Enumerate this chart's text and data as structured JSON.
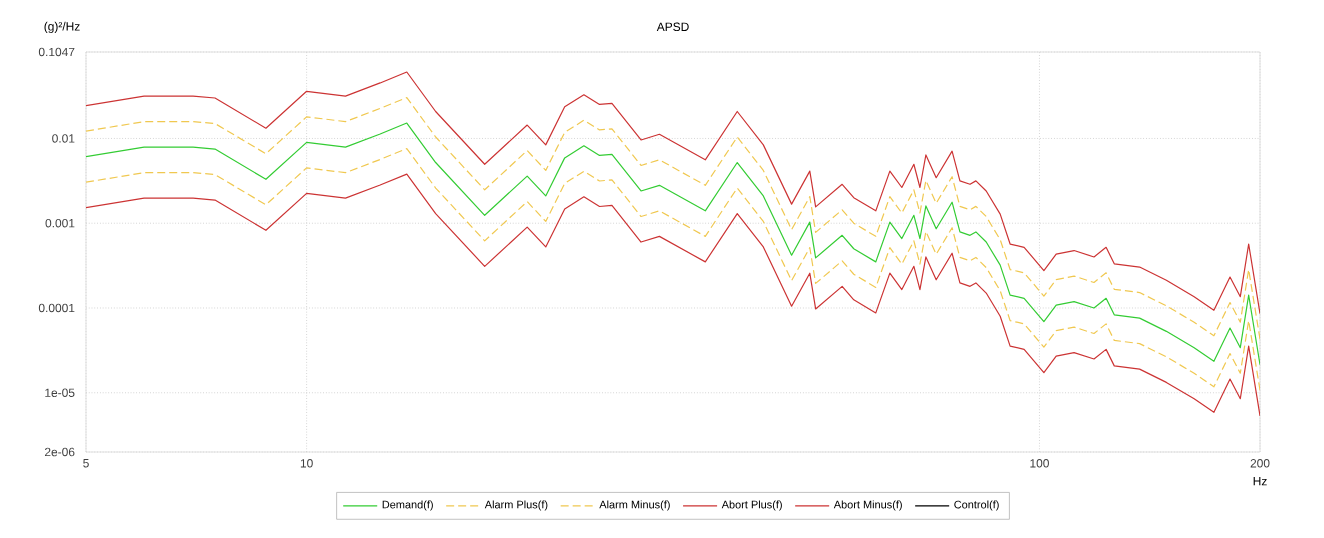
{
  "chart_data": {
    "type": "line",
    "title": "APSD",
    "xlabel": "Hz",
    "ylabel": "(g)²/Hz",
    "log": "xy",
    "grid": true,
    "legend": "bottom",
    "xlim": [
      5,
      200
    ],
    "xticks": [
      5,
      10,
      100,
      200
    ],
    "ylim": [
      2e-06,
      0.1047
    ],
    "yticks": [
      {
        "value": 0.1047,
        "label": "0.1047"
      },
      0.01,
      0.001,
      0.0001,
      {
        "value": 1e-05,
        "label": "1e-05"
      },
      {
        "value": 2e-06,
        "label": "2e-06"
      }
    ],
    "x": [
      5,
      6,
      7,
      7.5,
      8.8,
      10,
      11.3,
      12.6,
      13.7,
      15,
      17.5,
      20,
      21.2,
      22.5,
      23.9,
      25.1,
      26.1,
      28.6,
      30.3,
      35,
      38.7,
      42,
      45.9,
      48.6,
      49.5,
      53.8,
      55.8,
      59.8,
      62.5,
      64.9,
      67.4,
      68.7,
      70,
      72.3,
      76,
      77.9,
      80.4,
      81.9,
      84.6,
      88.4,
      91.2,
      95.3,
      101.4,
      105.4,
      111.5,
      118.7,
      123.3,
      126.5,
      137,
      149,
      162.6,
      173,
      182,
      188,
      193,
      200
    ],
    "series": [
      {
        "name": "Demand(f)",
        "color": "#33cc33",
        "line_style": "solid",
        "values": [
          0.0061,
          0.0079,
          0.0079,
          0.0075,
          0.0033,
          0.009,
          0.0079,
          0.0113,
          0.0152,
          0.0052,
          0.00124,
          0.0036,
          0.0021,
          0.0059,
          0.0082,
          0.0063,
          0.0065,
          0.0024,
          0.0028,
          0.0014,
          0.0052,
          0.0021,
          0.00042,
          0.00103,
          0.00039,
          0.00072,
          0.0005,
          0.00035,
          0.00103,
          0.00066,
          0.00124,
          0.00066,
          0.0016,
          0.00086,
          0.00177,
          0.00079,
          0.00072,
          0.00079,
          0.0006,
          0.00032,
          0.000142,
          0.00013,
          6.9e-05,
          0.000108,
          0.000119,
          0.0001,
          0.00013,
          8.3e-05,
          7.6e-05,
          5.3e-05,
          3.4e-05,
          2.35e-05,
          5.8e-05,
          3.4e-05,
          0.000142,
          2.14e-05
        ]
      },
      {
        "name": "Alarm Plus(f)",
        "color": "#f0c850",
        "line_style": "dashed",
        "values": [
          0.0122,
          0.0158,
          0.0158,
          0.015,
          0.0066,
          0.018,
          0.0158,
          0.0226,
          0.0304,
          0.0104,
          0.00248,
          0.0072,
          0.0042,
          0.0118,
          0.0164,
          0.0126,
          0.013,
          0.0048,
          0.0056,
          0.0028,
          0.0104,
          0.0042,
          0.00084,
          0.00206,
          0.00078,
          0.00144,
          0.001,
          0.0007,
          0.00206,
          0.00132,
          0.00248,
          0.00132,
          0.0032,
          0.00172,
          0.00354,
          0.00158,
          0.00144,
          0.00158,
          0.0012,
          0.00064,
          0.000284,
          0.00026,
          0.000138,
          0.000216,
          0.000238,
          0.0002,
          0.00026,
          0.000166,
          0.000152,
          0.000106,
          6.8e-05,
          4.7e-05,
          0.000116,
          6.8e-05,
          0.000284,
          4.28e-05
        ]
      },
      {
        "name": "Alarm Minus(f)",
        "color": "#f0c850",
        "line_style": "dashed",
        "values": [
          0.00305,
          0.00395,
          0.00395,
          0.00375,
          0.00165,
          0.0045,
          0.00395,
          0.00565,
          0.0076,
          0.0026,
          0.00062,
          0.0018,
          0.00105,
          0.00295,
          0.0041,
          0.00315,
          0.00325,
          0.0012,
          0.0014,
          0.0007,
          0.0026,
          0.00105,
          0.00021,
          0.000515,
          0.000195,
          0.00036,
          0.00025,
          0.000175,
          0.000515,
          0.00033,
          0.00062,
          0.00033,
          0.0008,
          0.00043,
          0.000885,
          0.000395,
          0.00036,
          0.000395,
          0.0003,
          0.00016,
          7.1e-05,
          6.5e-05,
          3.45e-05,
          5.4e-05,
          5.95e-05,
          5e-05,
          6.5e-05,
          4.15e-05,
          3.8e-05,
          2.65e-05,
          1.7e-05,
          1.175e-05,
          2.9e-05,
          1.7e-05,
          7.1e-05,
          1.07e-05
        ]
      },
      {
        "name": "Abort Plus(f)",
        "color": "#cc3333",
        "line_style": "solid",
        "values": [
          0.0244,
          0.0316,
          0.0316,
          0.03,
          0.0132,
          0.036,
          0.0316,
          0.0452,
          0.0608,
          0.0208,
          0.00496,
          0.0144,
          0.0084,
          0.0236,
          0.0328,
          0.0252,
          0.026,
          0.0096,
          0.0112,
          0.0056,
          0.0208,
          0.0084,
          0.00168,
          0.00412,
          0.00156,
          0.00288,
          0.002,
          0.0014,
          0.00412,
          0.00264,
          0.00496,
          0.00264,
          0.0064,
          0.00344,
          0.00708,
          0.00316,
          0.00288,
          0.00316,
          0.0024,
          0.00128,
          0.000568,
          0.00052,
          0.000276,
          0.000432,
          0.000476,
          0.0004,
          0.00052,
          0.000332,
          0.000304,
          0.000212,
          0.000136,
          9.4e-05,
          0.000232,
          0.000136,
          0.000568,
          8.56e-05
        ]
      },
      {
        "name": "Abort Minus(f)",
        "color": "#cc3333",
        "line_style": "solid",
        "values": [
          0.001525,
          0.001975,
          0.001975,
          0.001875,
          0.000825,
          0.00225,
          0.001975,
          0.002825,
          0.0038,
          0.0013,
          0.00031,
          0.0009,
          0.000525,
          0.001475,
          0.00205,
          0.001575,
          0.001625,
          0.0006,
          0.0007,
          0.00035,
          0.0013,
          0.000525,
          0.000105,
          0.0002575,
          9.75e-05,
          0.00018,
          0.000125,
          8.75e-05,
          0.0002575,
          0.000165,
          0.00031,
          0.000165,
          0.0004,
          0.000215,
          0.0004425,
          0.0001975,
          0.00018,
          0.0001975,
          0.00015,
          8e-05,
          3.55e-05,
          3.25e-05,
          1.725e-05,
          2.7e-05,
          2.975e-05,
          2.5e-05,
          3.25e-05,
          2.075e-05,
          1.9e-05,
          1.325e-05,
          8.5e-06,
          5.875e-06,
          1.45e-05,
          8.5e-06,
          3.55e-05,
          5.35e-06
        ]
      },
      {
        "name": "Control(f)",
        "color": "#000000",
        "line_style": "solid",
        "values": [
          null,
          null,
          null,
          null,
          null,
          null,
          null,
          null,
          null,
          null,
          null,
          null,
          null,
          null,
          null,
          null,
          null,
          null,
          null,
          null,
          null,
          null,
          null,
          null,
          null,
          null,
          null,
          null,
          null,
          null,
          null,
          null,
          null,
          null,
          null,
          null,
          null,
          null,
          null,
          null,
          null,
          null,
          null,
          null,
          null,
          null,
          null,
          null,
          null,
          null,
          null,
          null,
          null,
          null,
          null,
          null
        ]
      }
    ]
  }
}
